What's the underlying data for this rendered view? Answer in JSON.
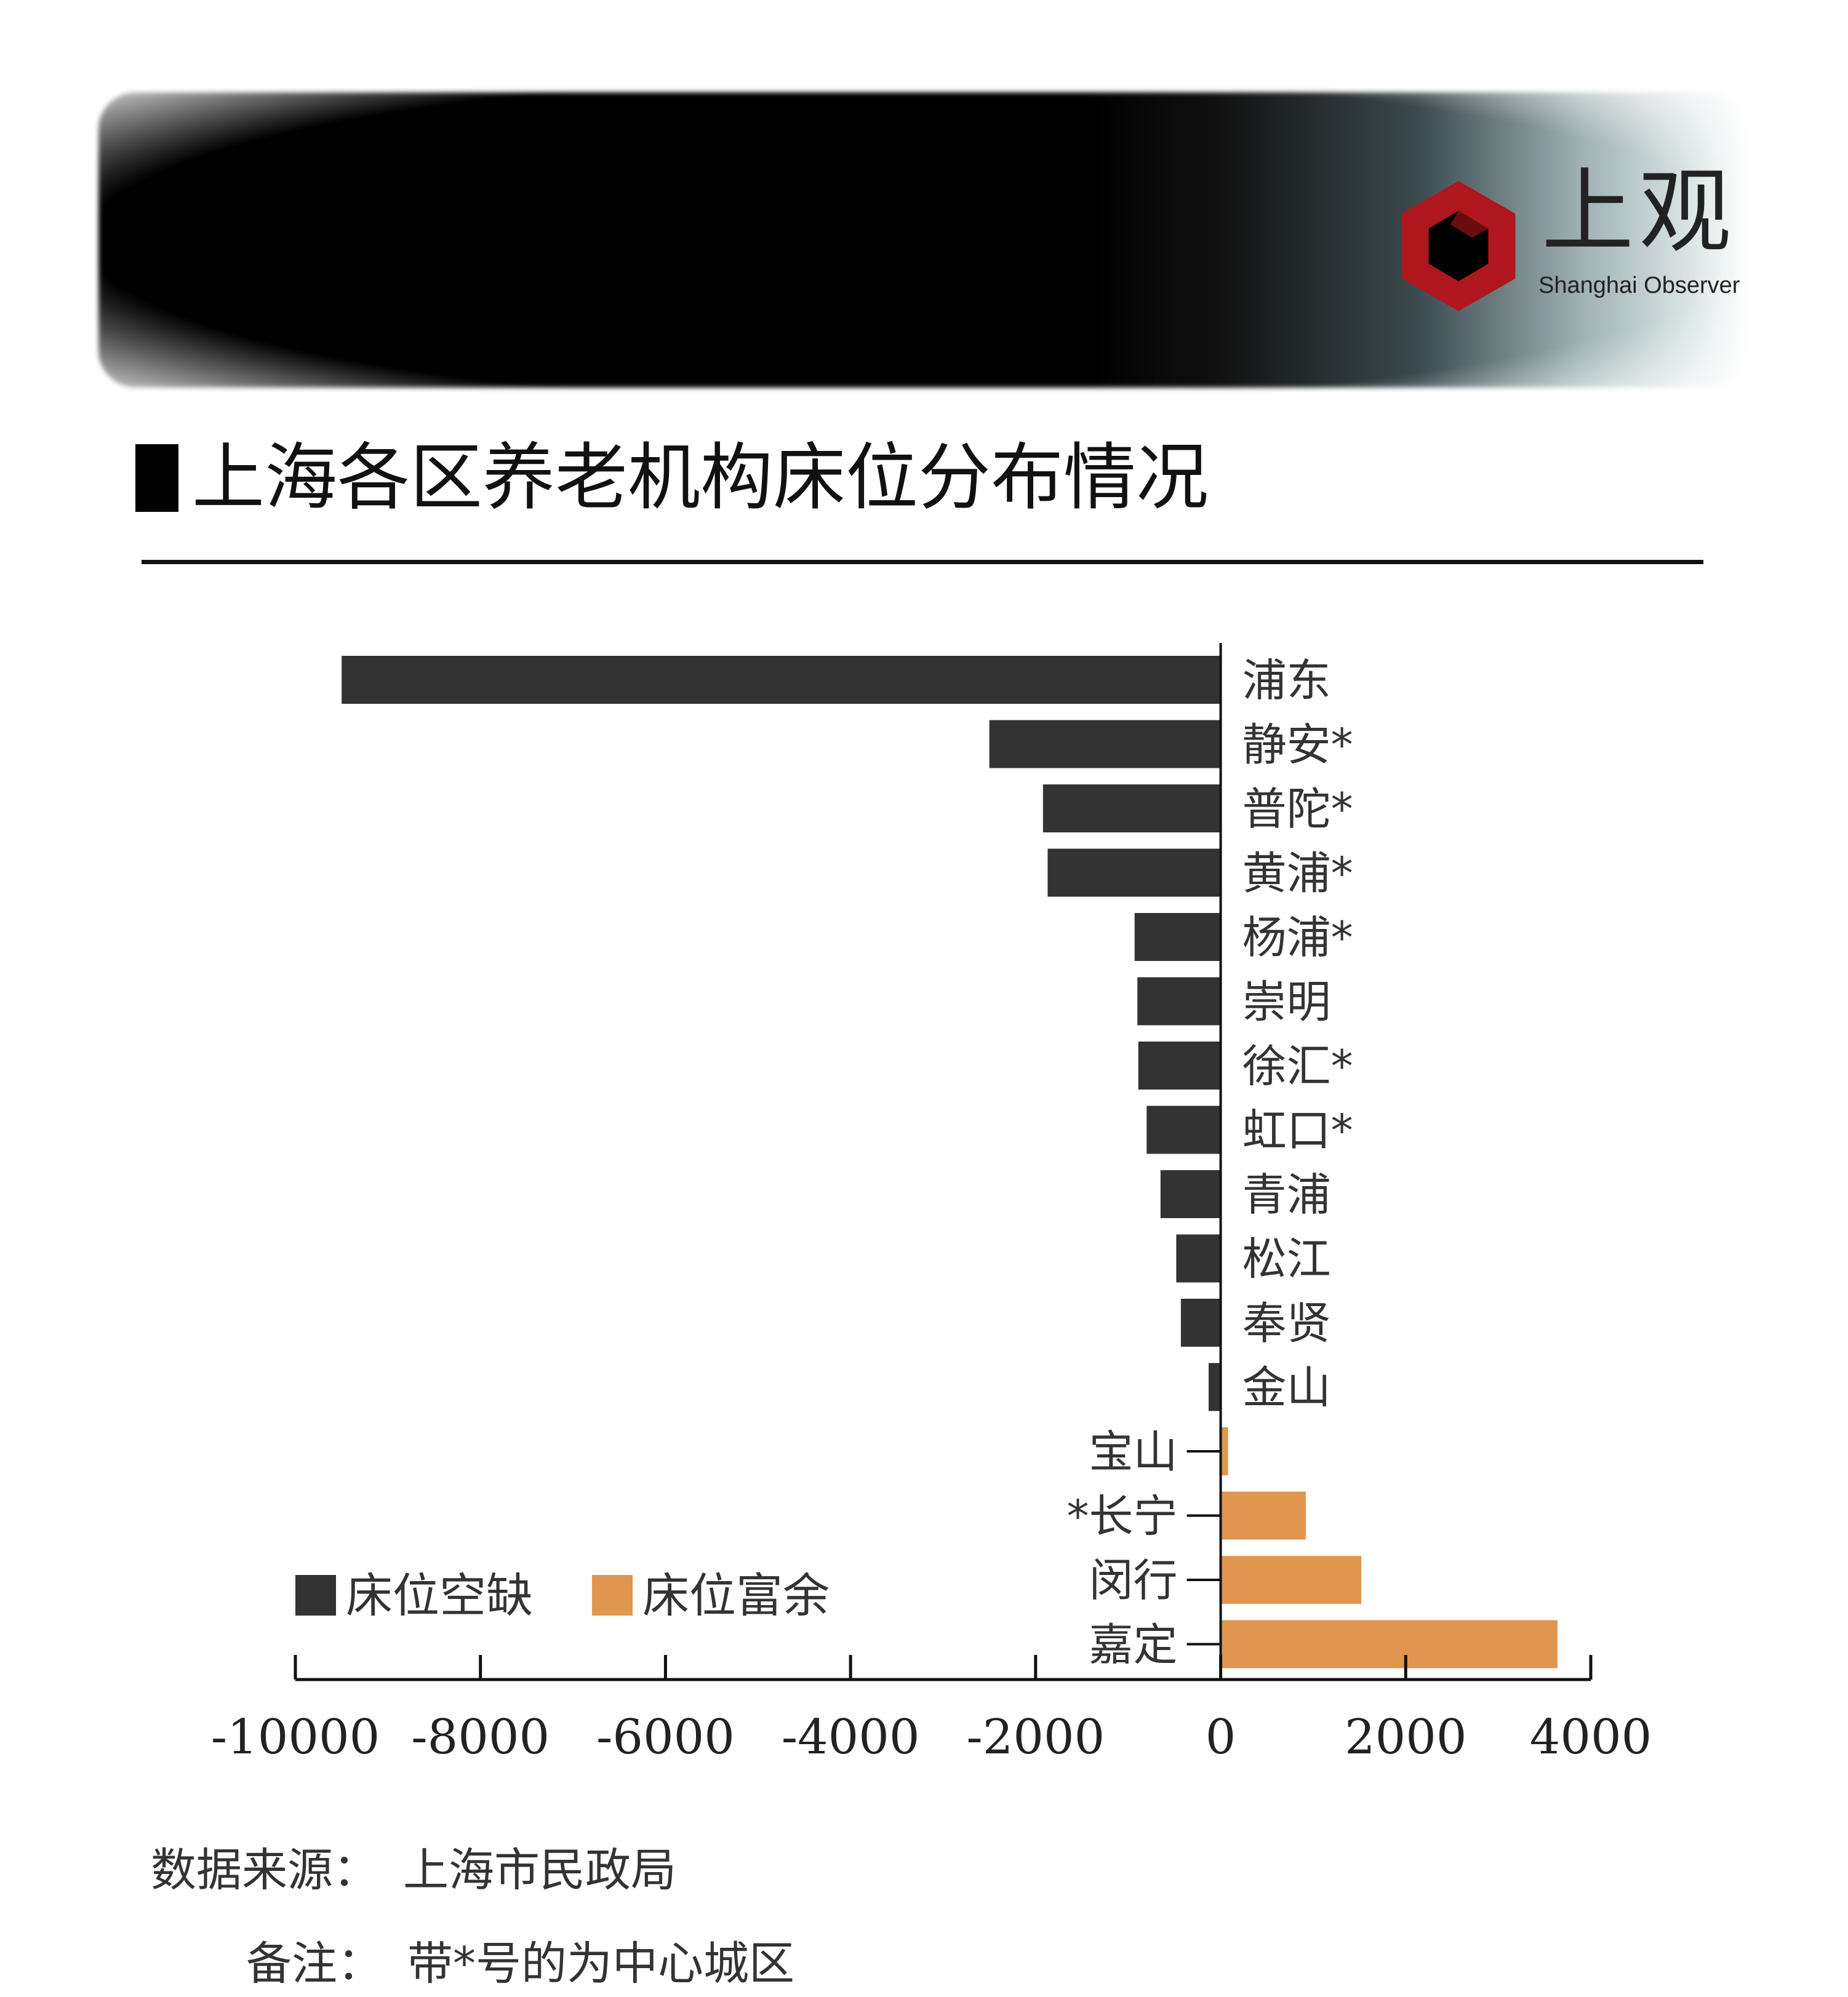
{
  "brand": {
    "name_cn": "上观",
    "name_en": "Shanghai Observer",
    "logo_color": "#b0161d"
  },
  "title": "上海各区养老机构床位分布情况",
  "chart_data": {
    "type": "bar",
    "orientation": "horizontal",
    "categories": [
      "浦东",
      "静安*",
      "普陀*",
      "黄浦*",
      "杨浦*",
      "崇明",
      "徐汇*",
      "虹口*",
      "青浦",
      "松江",
      "奉贤",
      "金山",
      "宝山",
      "*长宁",
      "闵行",
      "嘉定"
    ],
    "values": [
      -9500,
      -2500,
      -1920,
      -1870,
      -930,
      -900,
      -890,
      -800,
      -650,
      -480,
      -430,
      -130,
      80,
      920,
      1520,
      3640
    ],
    "xlim": [
      -10000,
      4000
    ],
    "xticks": [
      -10000,
      -8000,
      -6000,
      -4000,
      -2000,
      0,
      2000,
      4000
    ],
    "xtick_labels": [
      "-10000",
      "-8000",
      "-6000",
      "-4000",
      "-2000",
      "0",
      "2000",
      "4000"
    ],
    "legend": [
      {
        "name": "床位空缺",
        "color": "#333333"
      },
      {
        "name": "床位富余",
        "color": "#e0964e"
      }
    ],
    "legend_position": "bottom-left",
    "grid": false
  },
  "footer": {
    "source_label": "数据来源：",
    "source_value": "上海市民政局",
    "note_label": "备注：",
    "note_value": "带*号的为中心城区"
  }
}
